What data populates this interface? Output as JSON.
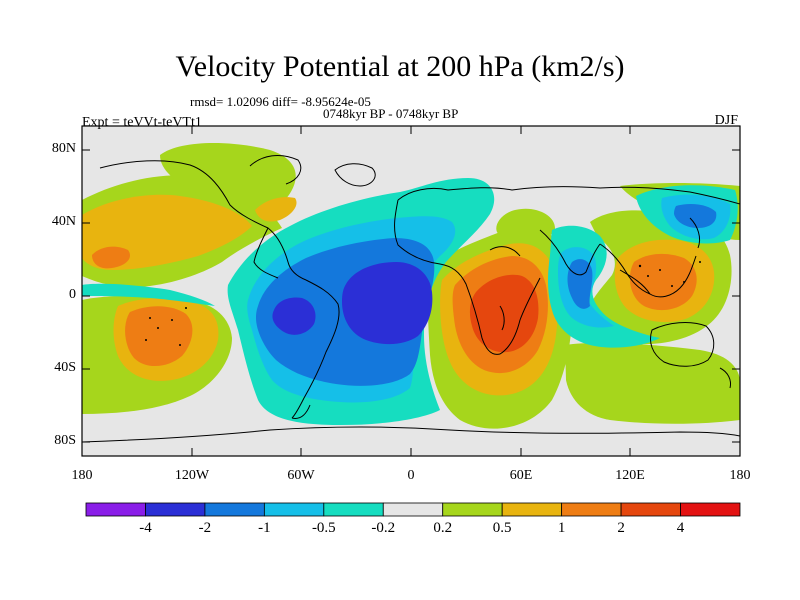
{
  "title": "Velocity Potential at 200 hPa (km2/s)",
  "stats": "rmsd= 1.02096 diff= -8.95624e-05",
  "period": "0748kyr BP - 0748kyr BP",
  "experiment": "Expt = teVVt-teVTt1",
  "season": "DJF",
  "lat_labels": [
    "80N",
    "40N",
    "0",
    "40S",
    "80S"
  ],
  "lon_labels": [
    "180",
    "120W",
    "60W",
    "0",
    "60E",
    "120E",
    "180"
  ],
  "colorbar": {
    "labels": [
      "-4",
      "-2",
      "-1",
      "-0.5",
      "-0.2",
      "0.2",
      "0.5",
      "1",
      "2",
      "4"
    ],
    "colors": [
      "#8a1ee8",
      "#2b2fd6",
      "#1478dc",
      "#15bfe8",
      "#16ddc0",
      "#e6e6e6",
      "#a6d61c",
      "#e8b40f",
      "#ee7d14",
      "#e5470e",
      "#e31212"
    ]
  },
  "map": {
    "background": "#e6e6e6",
    "fields": [
      {
        "level": "0.2",
        "color": "#a6d61c"
      },
      {
        "level": "0.5",
        "color": "#e8b40f"
      },
      {
        "level": "1",
        "color": "#ee7d14"
      },
      {
        "level": "2",
        "color": "#e5470e"
      },
      {
        "level": "-0.2",
        "color": "#16ddc0"
      },
      {
        "level": "-0.5",
        "color": "#15bfe8"
      },
      {
        "level": "-1",
        "color": "#1478dc"
      },
      {
        "level": "-2",
        "color": "#2b2fd6"
      }
    ]
  }
}
